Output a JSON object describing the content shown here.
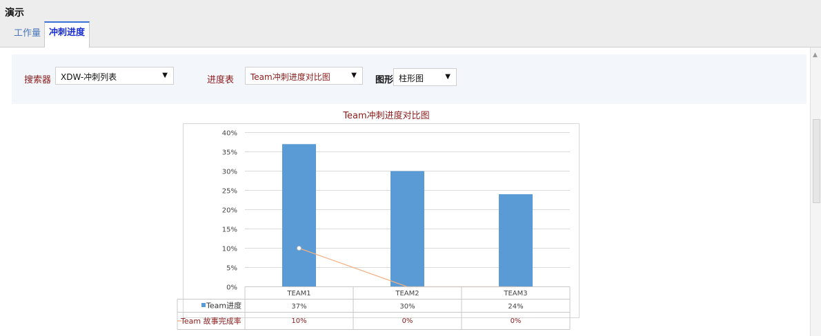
{
  "app": {
    "title": "演示"
  },
  "tabs": [
    {
      "label": "工作量"
    },
    {
      "label": "冲刺进度"
    }
  ],
  "filters": {
    "searcher_label": "搜索器",
    "searcher_value": "XDW-冲刺列表",
    "progress_label": "进度表",
    "progress_value": "Team冲刺进度对比图",
    "chart_label": "图形",
    "chart_value": "柱形图"
  },
  "colors": {
    "bar": "#5b9bd5",
    "line": "#f4b183",
    "title": "#8b1a1a"
  },
  "chart_data": {
    "type": "bar",
    "title": "Team冲刺进度对比图",
    "categories": [
      "TEAM1",
      "TEAM2",
      "TEAM3"
    ],
    "ylim": [
      0,
      40
    ],
    "yticks": [
      "0%",
      "5%",
      "10%",
      "15%",
      "20%",
      "25%",
      "30%",
      "35%",
      "40%"
    ],
    "grid": true,
    "series": [
      {
        "name": "Team进度",
        "type": "bar",
        "values": [
          37,
          30,
          24
        ],
        "labels": [
          "37%",
          "30%",
          "24%"
        ]
      },
      {
        "name": "Team 故事完成率",
        "type": "line",
        "values": [
          10,
          0,
          0
        ],
        "labels": [
          "10%",
          "0%",
          "0%"
        ]
      }
    ]
  }
}
